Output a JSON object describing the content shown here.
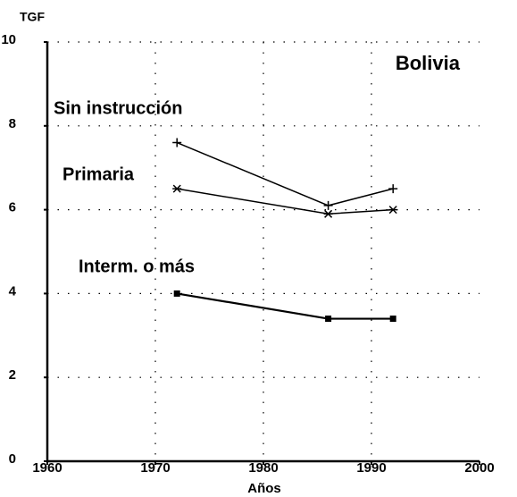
{
  "chart_data": {
    "type": "line",
    "title": "Bolivia",
    "y_label": "TGF",
    "x_label": "Años",
    "x": [
      1972,
      1986,
      1992
    ],
    "series": [
      {
        "name": "Sin instrucción",
        "color": "#000000",
        "marker": "plus",
        "values": [
          7.6,
          6.1,
          6.5
        ]
      },
      {
        "name": "Primaria",
        "color": "#000000",
        "marker": "star",
        "values": [
          6.5,
          5.9,
          6.0
        ]
      },
      {
        "name": "Interm. o más",
        "color": "#000000",
        "marker": "square",
        "values": [
          4.0,
          3.4,
          3.4
        ]
      }
    ],
    "xlim": [
      1960,
      2000
    ],
    "xticks": [
      1960,
      1970,
      1980,
      1990,
      2000
    ],
    "ylim": [
      0,
      10
    ],
    "yticks": [
      0,
      2,
      4,
      6,
      8,
      10
    ],
    "grid": true
  }
}
